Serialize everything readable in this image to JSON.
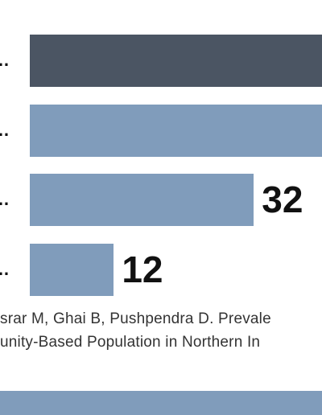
{
  "chart_data": {
    "type": "bar",
    "orientation": "horizontal",
    "categories": [
      "…e",
      "…e",
      "…e",
      "…e"
    ],
    "values": [
      null,
      null,
      32,
      12
    ],
    "value_labels": [
      "",
      "",
      "32",
      "12"
    ],
    "colors": [
      "#4b5563",
      "#809cbb",
      "#809cbb",
      "#809cbb"
    ],
    "xlim": [
      0,
      46
    ],
    "grid": false,
    "legend": "none"
  },
  "citation": {
    "line1": "srar M, Ghai B, Pushpendra D. Prevale",
    "line2": "unity-Based Population in Northern In"
  },
  "colors": {
    "dark_bar": "#4b5563",
    "light_bar": "#809cbb",
    "footer_band": "#809cbb"
  }
}
